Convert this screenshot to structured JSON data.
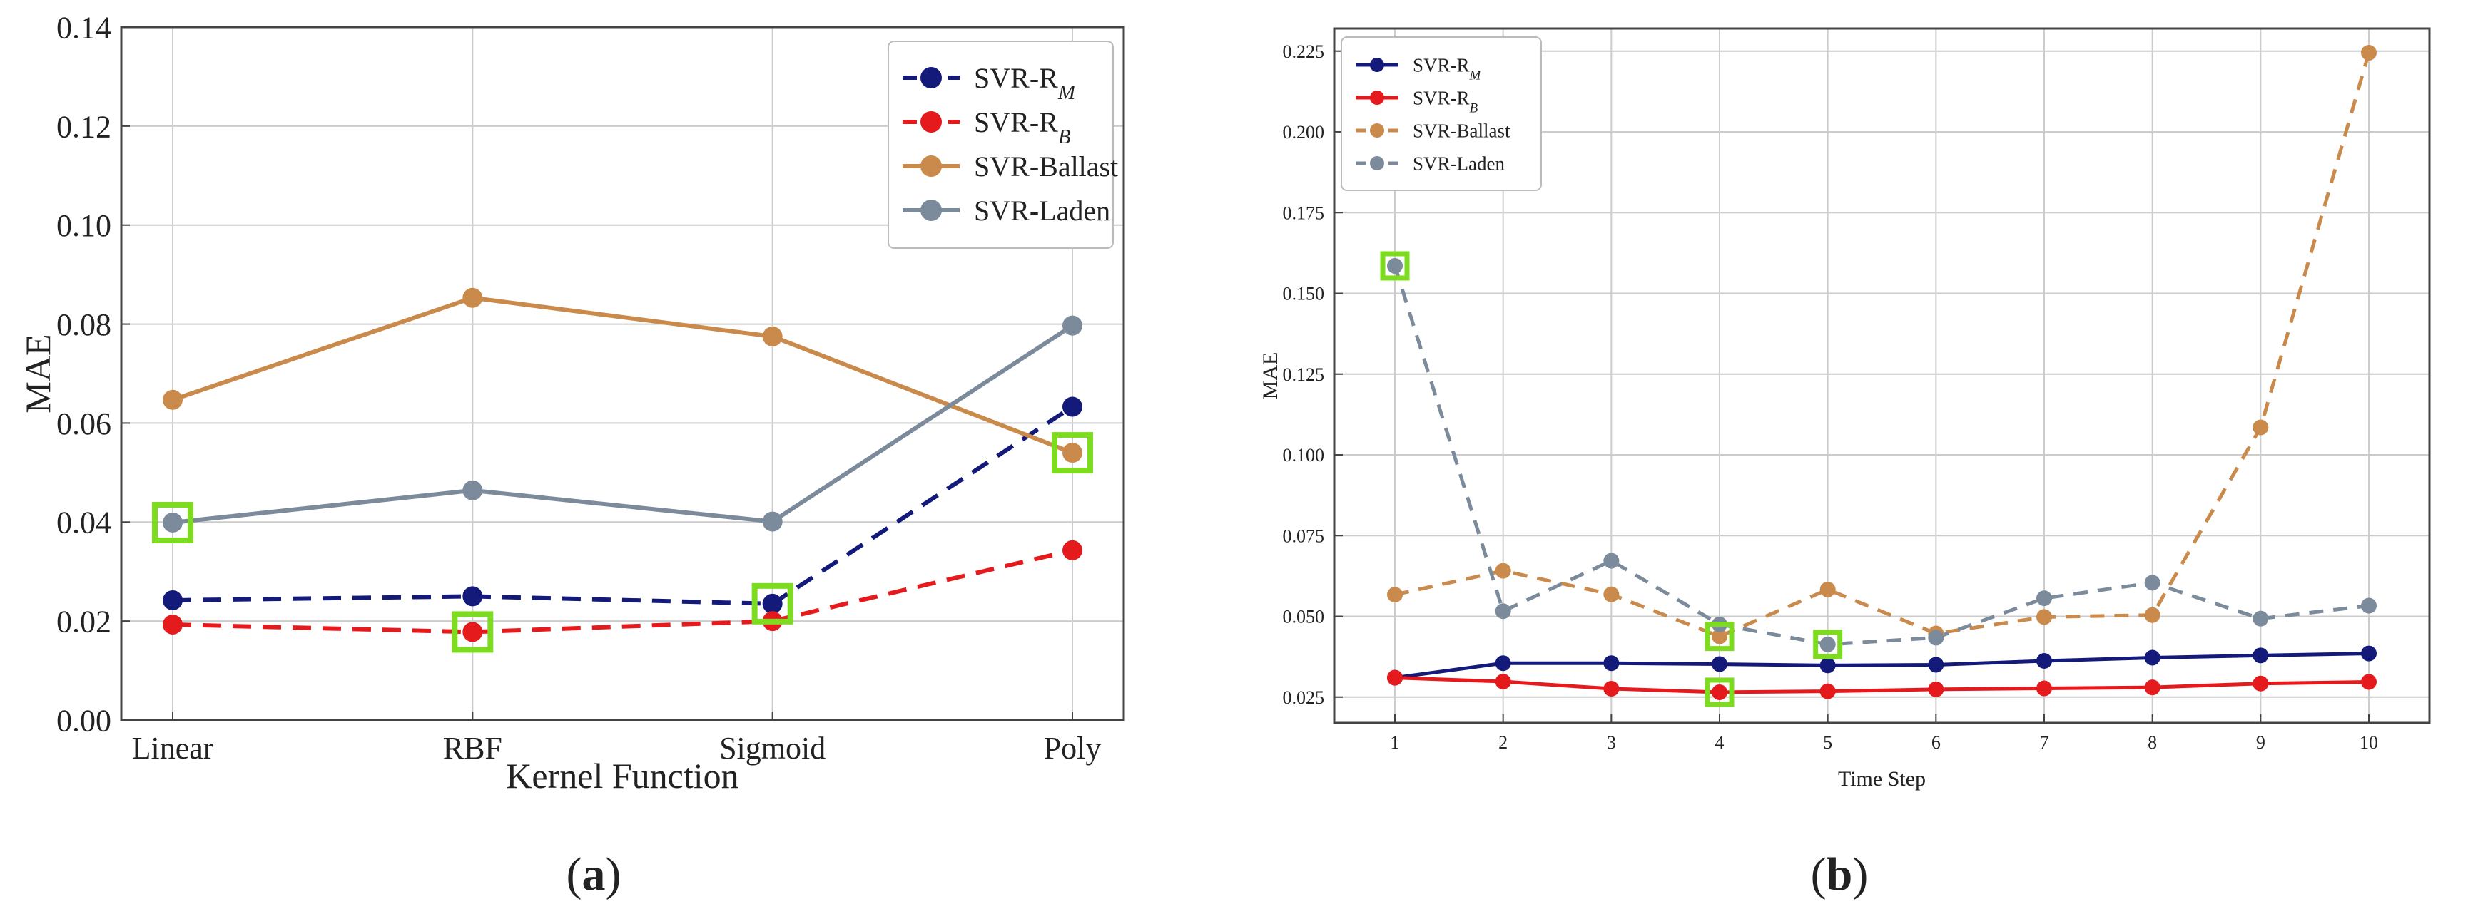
{
  "colors": {
    "rm": "#141a7a",
    "rb": "#e41a1c",
    "ballast": "#c98a4b",
    "laden": "#7c8b9b",
    "highlight": "#7ddc1f",
    "grid": "#cccccc",
    "frame": "#444444"
  },
  "panels": {
    "a": {
      "label_open": "(",
      "label_letter": "a",
      "label_close": ")"
    },
    "b": {
      "label_open": "(",
      "label_letter": "b",
      "label_close": ")"
    }
  },
  "chart_data": [
    {
      "type": "line",
      "panel": "a",
      "xlabel": "Kernel Function",
      "ylabel": "MAE",
      "categories": [
        "Linear",
        "RBF",
        "Sigmoid",
        "Poly"
      ],
      "ylim": [
        0,
        0.14
      ],
      "yticks": [
        "0.00",
        "0.02",
        "0.04",
        "0.06",
        "0.08",
        "0.10",
        "0.12",
        "0.14"
      ],
      "yticks_values": [
        0,
        0.02,
        0.04,
        0.06,
        0.08,
        0.1,
        0.12,
        0.14
      ],
      "grid": true,
      "legend_position": "top-right",
      "series": [
        {
          "name": "SVR-R",
          "subscript": "M",
          "color_key": "rm",
          "dashed": true,
          "values": [
            0.0242,
            0.025,
            0.0235,
            0.0633
          ],
          "highlight_index": 2
        },
        {
          "name": "SVR-R",
          "subscript": "B",
          "color_key": "rb",
          "dashed": true,
          "values": [
            0.0193,
            0.0178,
            0.02,
            0.0343
          ],
          "highlight_index": 1
        },
        {
          "name": "SVR-Ballast",
          "subscript": "",
          "color_key": "ballast",
          "dashed": false,
          "values": [
            0.0647,
            0.0853,
            0.0775,
            0.054
          ],
          "highlight_index": 3
        },
        {
          "name": "SVR-Laden",
          "subscript": "",
          "color_key": "laden",
          "dashed": false,
          "values": [
            0.0399,
            0.0464,
            0.0401,
            0.0797
          ],
          "highlight_index": 0
        }
      ]
    },
    {
      "type": "line",
      "panel": "b",
      "xlabel": "Time Step",
      "ylabel": "MAE",
      "x": [
        1,
        2,
        3,
        4,
        5,
        6,
        7,
        8,
        9,
        10
      ],
      "xticks": [
        "1",
        "2",
        "3",
        "4",
        "5",
        "6",
        "7",
        "8",
        "9",
        "10"
      ],
      "ylim": [
        0.017,
        0.232
      ],
      "yticks": [
        "0.025",
        "0.050",
        "0.075",
        "0.100",
        "0.125",
        "0.150",
        "0.175",
        "0.200",
        "0.225"
      ],
      "yticks_values": [
        0.025,
        0.05,
        0.075,
        0.1,
        0.125,
        0.15,
        0.175,
        0.2,
        0.225
      ],
      "grid": true,
      "legend_position": "top-left",
      "series": [
        {
          "name": "SVR-R",
          "subscript": "M",
          "color_key": "rm",
          "dashed": false,
          "values": [
            0.031,
            0.0355,
            0.0355,
            0.0352,
            0.0348,
            0.035,
            0.0362,
            0.0372,
            0.0379,
            0.0385
          ],
          "highlight_index": -1
        },
        {
          "name": "SVR-R",
          "subscript": "B",
          "color_key": "rb",
          "dashed": false,
          "values": [
            0.031,
            0.0298,
            0.0276,
            0.0265,
            0.0268,
            0.0274,
            0.0277,
            0.028,
            0.0292,
            0.0297
          ],
          "highlight_index": 3
        },
        {
          "name": "SVR-Ballast",
          "subscript": "",
          "color_key": "ballast",
          "dashed": true,
          "values": [
            0.0567,
            0.0641,
            0.0568,
            0.0438,
            0.0583,
            0.0447,
            0.0498,
            0.0504,
            0.1085,
            0.2245
          ],
          "highlight_index": 3
        },
        {
          "name": "SVR-Laden",
          "subscript": "",
          "color_key": "laden",
          "dashed": true,
          "values": [
            0.1585,
            0.0516,
            0.0672,
            0.0475,
            0.0413,
            0.0434,
            0.0556,
            0.0604,
            0.0493,
            0.0533
          ],
          "highlight_index": 4,
          "extra_highlight_index": 0
        }
      ]
    }
  ]
}
